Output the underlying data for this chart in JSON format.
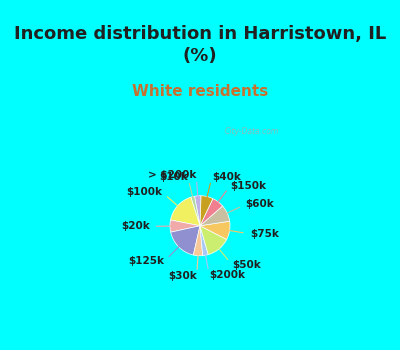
{
  "title": "Income distribution in Harristown, IL\n(%)",
  "subtitle": "White residents",
  "labels": [
    "> $200k",
    "$10k",
    "$100k",
    "$20k",
    "$125k",
    "$30k",
    "$200k",
    "$50k",
    "$75k",
    "$60k",
    "$150k",
    "$40k"
  ],
  "sizes": [
    3.5,
    2.0,
    17.0,
    6.5,
    18.0,
    5.0,
    3.0,
    13.0,
    10.0,
    9.0,
    6.5,
    6.5
  ],
  "colors": [
    "#c0b0e8",
    "#b0d8a0",
    "#f0f060",
    "#f0aaaa",
    "#9090d0",
    "#f8c898",
    "#a8c8f8",
    "#ccee70",
    "#f8c860",
    "#c8c0a0",
    "#f08090",
    "#c8a020"
  ],
  "background_fig": "#00ffff",
  "background_pie_box": "#d8f0e8",
  "title_color": "#202020",
  "subtitle_color": "#c87030",
  "label_color": "#202020",
  "startangle": 88,
  "title_fontsize": 13,
  "subtitle_fontsize": 11,
  "label_fontsize": 7.5,
  "watermark": "City-Data.com"
}
